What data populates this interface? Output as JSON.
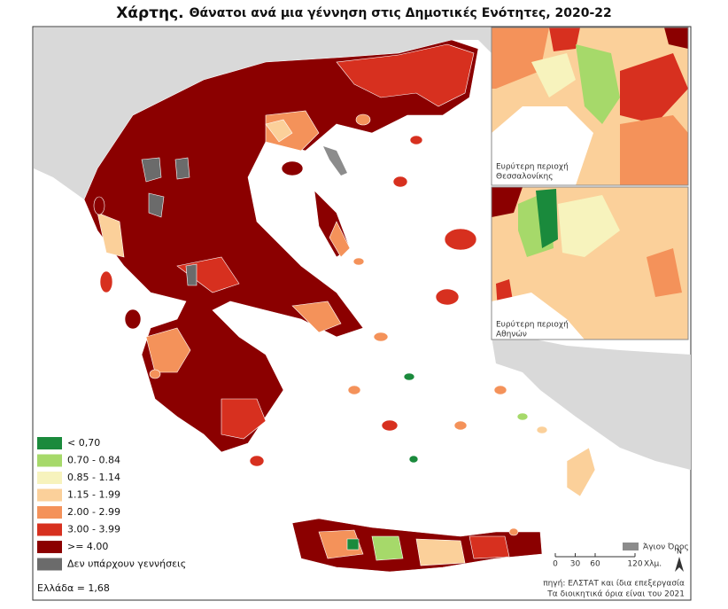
{
  "title": {
    "label": "Χάρτης.",
    "text": "Θάνατοι ανά μια γέννηση στις Δημοτικές Ενότητες, 2020-22"
  },
  "legend": {
    "items": [
      {
        "label": "< 0,70",
        "color": "#1a8a3c"
      },
      {
        "label": "0.70 - 0.84",
        "color": "#a6d96a"
      },
      {
        "label": "0.85 - 1.14",
        "color": "#f7f3bd"
      },
      {
        "label": "1.15 - 1.99",
        "color": "#fbd09a"
      },
      {
        "label": "2.00 - 2.99",
        "color": "#f4925a"
      },
      {
        "label": "3.00 - 3.99",
        "color": "#d7301f"
      },
      {
        "label": ">= 4.00",
        "color": "#8b0000"
      },
      {
        "label": "Δεν υπάρχουν γεννήσεις",
        "color": "#6b6b6b"
      }
    ],
    "note": "Ελλάδα = 1,68"
  },
  "insets": [
    {
      "label": [
        "Ευρύτερη περιοχή",
        "Θεσσαλονίκης"
      ]
    },
    {
      "label": [
        "Ευρύτερη περιοχή",
        "Αθηνών"
      ]
    }
  ],
  "mount_athos": {
    "label": "Άγιον Όρος",
    "color": "#8c8c8c"
  },
  "scale_bar": {
    "ticks": [
      0,
      30,
      60,
      120
    ],
    "unit": "Χλμ."
  },
  "source": [
    "πηγή: ΕΛΣΤΑΤ και ίδια επεξεργασία",
    "Τα διοικητικά όρια είναι του 2021"
  ]
}
